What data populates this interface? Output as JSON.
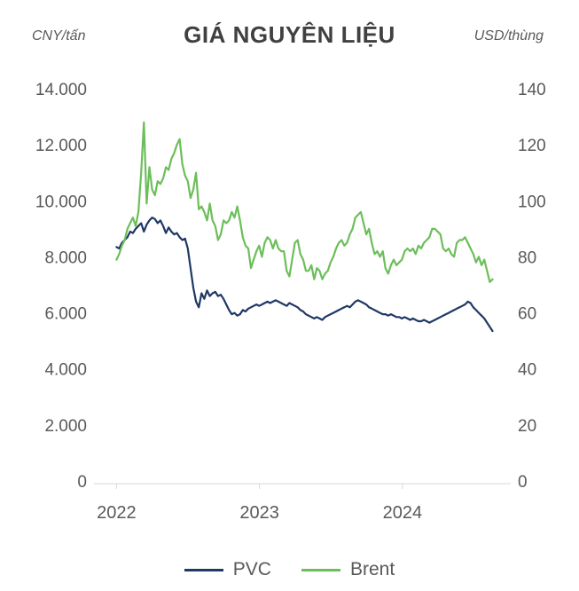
{
  "header": {
    "title": "GIÁ NGUYÊN LIỆU",
    "left_unit": "CNY/tấn",
    "right_unit": "USD/thùng"
  },
  "chart_data": {
    "type": "line",
    "title": "GIÁ NGUYÊN LIỆU",
    "legend_position": "bottom",
    "grid": "off",
    "x_axis": {
      "min": 2021.88,
      "max": 2024.72,
      "ticks": [
        {
          "v": 2022,
          "label": "2022"
        },
        {
          "v": 2023,
          "label": "2023"
        },
        {
          "v": 2024,
          "label": "2024"
        }
      ]
    },
    "y_left": {
      "unit": "CNY/tấn",
      "min": 0,
      "max": 14000,
      "tick_values": [
        0,
        2000,
        4000,
        6000,
        8000,
        10000,
        12000,
        14000
      ],
      "tick_labels": [
        "0",
        "2.000",
        "4.000",
        "6.000",
        "8.000",
        "10.000",
        "12.000",
        "14.000"
      ]
    },
    "y_right": {
      "unit": "USD/thùng",
      "min": 0,
      "max": 140,
      "tick_values": [
        0,
        20,
        40,
        60,
        80,
        100,
        120,
        140
      ],
      "tick_labels": [
        "0",
        "20",
        "40",
        "60",
        "80",
        "100",
        "120",
        "140"
      ]
    },
    "series": [
      {
        "name": "PVC",
        "axis": "left",
        "color": "#1f3864",
        "x_start": 2022.0,
        "x_end": 2024.63,
        "values": [
          8350,
          8300,
          8500,
          8600,
          8700,
          8900,
          8850,
          9000,
          9100,
          9200,
          8900,
          9150,
          9300,
          9400,
          9350,
          9200,
          9300,
          9100,
          8850,
          9050,
          8900,
          8800,
          8850,
          8700,
          8600,
          8650,
          8300,
          7600,
          6900,
          6400,
          6200,
          6700,
          6500,
          6800,
          6600,
          6700,
          6750,
          6600,
          6650,
          6500,
          6300,
          6100,
          5950,
          6000,
          5900,
          5950,
          6100,
          6050,
          6150,
          6200,
          6250,
          6300,
          6250,
          6300,
          6350,
          6400,
          6350,
          6400,
          6450,
          6400,
          6350,
          6300,
          6250,
          6350,
          6300,
          6250,
          6200,
          6100,
          6050,
          5950,
          5900,
          5850,
          5800,
          5850,
          5800,
          5750,
          5850,
          5900,
          5950,
          6000,
          6050,
          6100,
          6150,
          6200,
          6250,
          6200,
          6300,
          6400,
          6450,
          6400,
          6350,
          6300,
          6200,
          6150,
          6100,
          6050,
          6000,
          5950,
          5950,
          5900,
          5950,
          5900,
          5850,
          5850,
          5800,
          5850,
          5800,
          5750,
          5800,
          5750,
          5700,
          5700,
          5750,
          5700,
          5650,
          5700,
          5750,
          5800,
          5850,
          5900,
          5950,
          6000,
          6050,
          6100,
          6150,
          6200,
          6250,
          6300,
          6400,
          6350,
          6200,
          6100,
          6000,
          5900,
          5800,
          5650,
          5500,
          5350
        ]
      },
      {
        "name": "Brent",
        "axis": "right",
        "color": "#6cbe5a",
        "x_start": 2022.0,
        "x_end": 2024.63,
        "values": [
          79,
          81,
          84,
          86,
          90,
          92,
          94,
          91,
          96,
          110,
          128,
          99,
          112,
          104,
          102,
          107,
          106,
          108,
          112,
          111,
          115,
          117,
          120,
          122,
          113,
          109,
          107,
          101,
          104,
          110,
          97,
          98,
          96,
          93,
          99,
          93,
          91,
          86,
          88,
          93,
          92,
          93,
          96,
          94,
          98,
          93,
          87,
          84,
          83,
          76,
          79,
          82,
          84,
          80,
          85,
          87,
          86,
          83,
          86,
          83,
          82,
          82,
          75,
          73,
          79,
          85,
          86,
          81,
          79,
          75,
          75,
          77,
          72,
          76,
          75,
          72,
          74,
          75,
          78,
          80,
          83,
          85,
          86,
          84,
          85,
          88,
          90,
          94,
          95,
          96,
          92,
          88,
          90,
          85,
          81,
          82,
          80,
          82,
          76,
          74,
          77,
          79,
          77,
          78,
          79,
          82,
          83,
          82,
          83,
          81,
          84,
          83,
          85,
          86,
          87,
          90,
          90,
          89,
          88,
          83,
          82,
          83,
          81,
          80,
          85,
          86,
          86,
          87,
          85,
          83,
          81,
          78,
          80,
          77,
          79,
          75,
          71,
          72
        ]
      }
    ]
  }
}
